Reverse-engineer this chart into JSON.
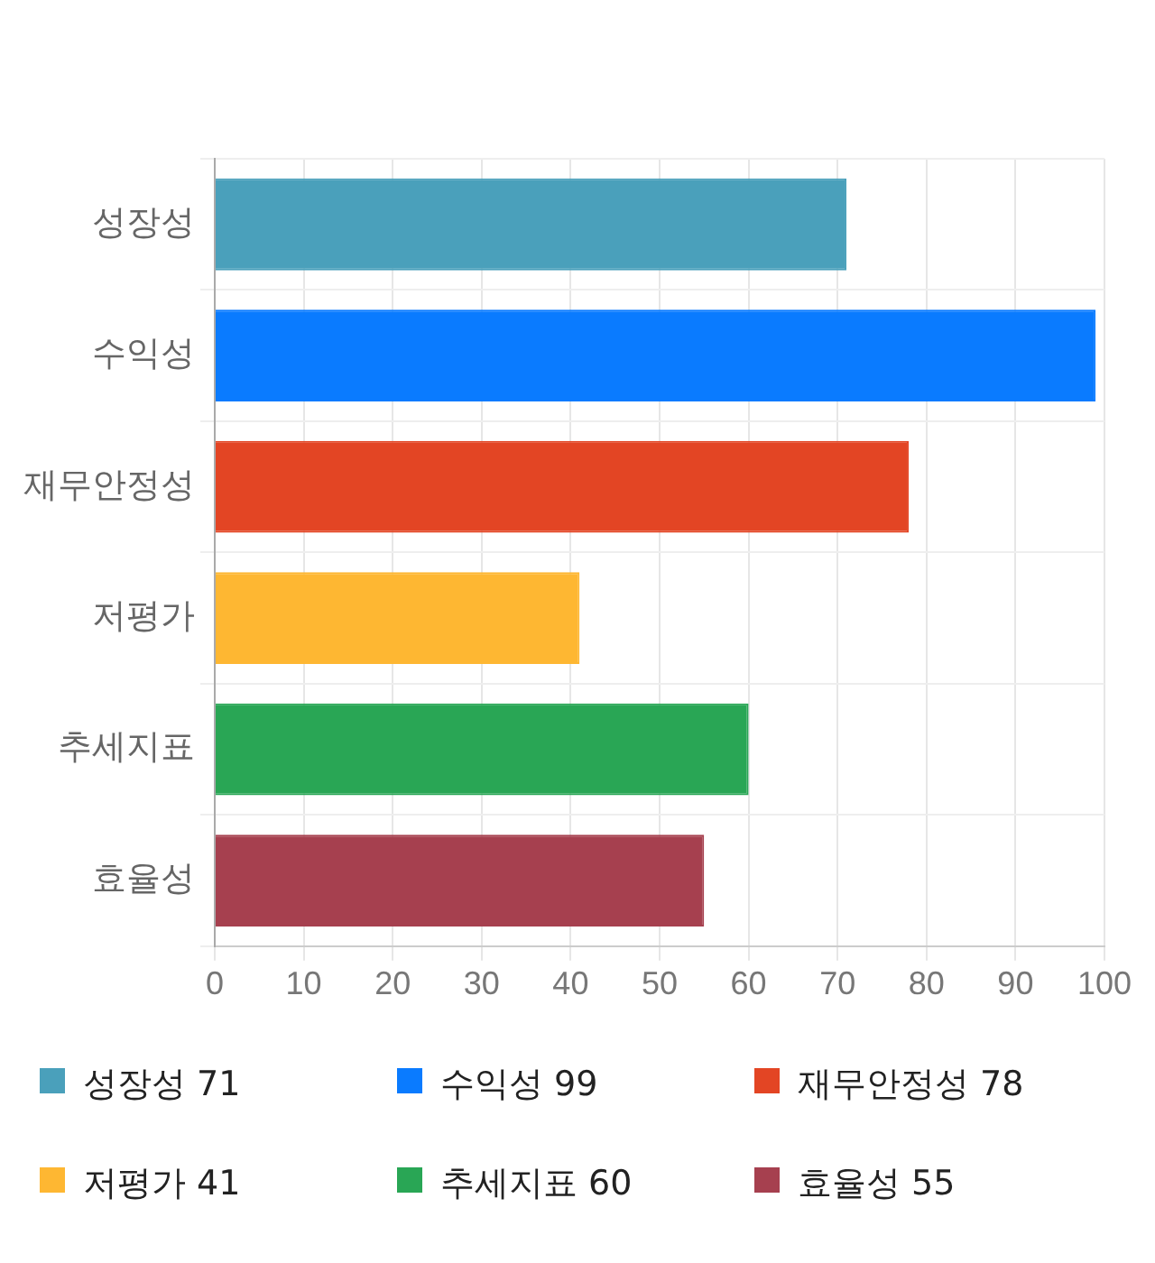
{
  "chart_data": {
    "type": "bar",
    "orientation": "horizontal",
    "categories": [
      "성장성",
      "수익성",
      "재무안정성",
      "저평가",
      "추세지표",
      "효율성"
    ],
    "values": [
      71,
      99,
      78,
      41,
      60,
      55
    ],
    "value_labels": [
      "71",
      "99",
      "78",
      "41",
      "60",
      "55"
    ],
    "colors": [
      "#4aa0bb",
      "#0a7bff",
      "#e34524",
      "#feb732",
      "#29a655",
      "#a6404f"
    ],
    "xlim": [
      0,
      100
    ],
    "xticks": [
      0,
      10,
      20,
      30,
      40,
      50,
      60,
      70,
      80,
      90,
      100
    ],
    "grid": true
  }
}
